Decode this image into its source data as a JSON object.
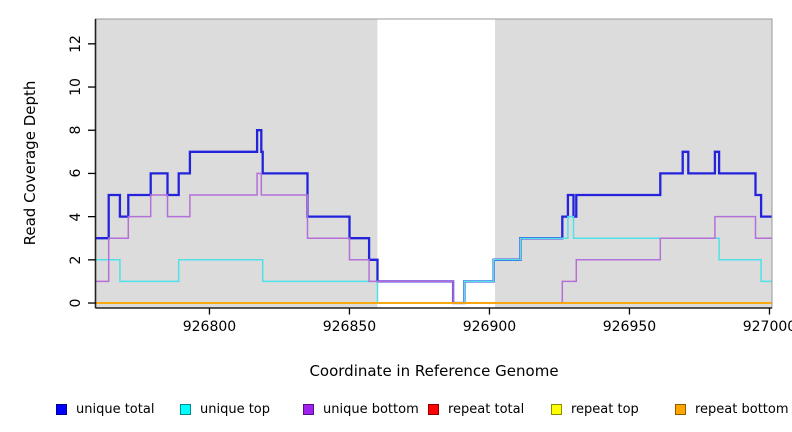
{
  "chart_data": {
    "type": "line",
    "step": true,
    "title": "",
    "xlabel": "Coordinate in Reference Genome",
    "ylabel": "Read Coverage Depth",
    "xlim": [
      926759.3,
      927000.9
    ],
    "ylim": [
      -0.23,
      13.15
    ],
    "grid": false,
    "legend_position": "bottom",
    "x_ticks": [
      {
        "value": 926800,
        "label": "926800"
      },
      {
        "value": 926850,
        "label": "926850"
      },
      {
        "value": 926900,
        "label": "926900"
      },
      {
        "value": 926950,
        "label": "926950"
      },
      {
        "value": 927000,
        "label": "927000"
      }
    ],
    "y_ticks": [
      {
        "value": 0,
        "label": "0"
      },
      {
        "value": 2,
        "label": "2"
      },
      {
        "value": 4,
        "label": "4"
      },
      {
        "value": 6,
        "label": "6"
      },
      {
        "value": 8,
        "label": "8"
      },
      {
        "value": 10,
        "label": "10"
      },
      {
        "value": 12,
        "label": "12"
      }
    ],
    "background": {
      "covered_region_color": "#DCDCDC",
      "gap_region": {
        "from": 926860,
        "to": 926902,
        "color": "#FFFFFF"
      },
      "frame_color": "#999999",
      "axis_color": "#222222"
    },
    "series": [
      {
        "name": "unique total",
        "legend_color": "#0000FF",
        "line_color": "#2323DC",
        "line_width": 2.3,
        "points": [
          [
            926759,
            3
          ],
          [
            926764,
            5
          ],
          [
            926768,
            4
          ],
          [
            926771,
            5
          ],
          [
            926779,
            6
          ],
          [
            926785,
            5
          ],
          [
            926789,
            6
          ],
          [
            926793,
            7
          ],
          [
            926817,
            8
          ],
          [
            926818.5,
            7
          ],
          [
            926819,
            6
          ],
          [
            926835,
            4
          ],
          [
            926850,
            3
          ],
          [
            926857,
            2
          ],
          [
            926860,
            1
          ],
          [
            926887,
            0
          ],
          [
            926891,
            1
          ],
          [
            926901.5,
            2
          ],
          [
            926911,
            3
          ],
          [
            926926,
            4
          ],
          [
            926928,
            5
          ],
          [
            926930,
            4
          ],
          [
            926931,
            5
          ],
          [
            926961,
            6
          ],
          [
            926969,
            7
          ],
          [
            926971,
            6
          ],
          [
            926980.5,
            7
          ],
          [
            926982,
            6
          ],
          [
            926995,
            5
          ],
          [
            926997,
            4
          ],
          [
            927001,
            4
          ]
        ]
      },
      {
        "name": "unique top",
        "legend_color": "#00FFFF",
        "line_color": "#4FE1EA",
        "line_width": 1.5,
        "points": [
          [
            926759,
            2
          ],
          [
            926768,
            1
          ],
          [
            926789,
            2
          ],
          [
            926819,
            1
          ],
          [
            926860,
            0
          ],
          [
            926891,
            1
          ],
          [
            926901.5,
            2
          ],
          [
            926911,
            3
          ],
          [
            926928,
            4
          ],
          [
            926930,
            3
          ],
          [
            926982,
            2
          ],
          [
            926997,
            1
          ],
          [
            927001,
            1
          ]
        ]
      },
      {
        "name": "unique bottom",
        "legend_color": "#A020F0",
        "line_color": "#B56FD8",
        "line_width": 1.5,
        "points": [
          [
            926759,
            1
          ],
          [
            926764,
            3
          ],
          [
            926771,
            4
          ],
          [
            926779,
            5
          ],
          [
            926785,
            4
          ],
          [
            926793,
            5
          ],
          [
            926817,
            6
          ],
          [
            926818.5,
            5
          ],
          [
            926835,
            3
          ],
          [
            926850,
            2
          ],
          [
            926857,
            1
          ],
          [
            926887,
            0
          ],
          [
            926926,
            1
          ],
          [
            926931,
            2
          ],
          [
            926961,
            3
          ],
          [
            926980.5,
            4
          ],
          [
            926995,
            3
          ],
          [
            927001,
            3
          ]
        ]
      },
      {
        "name": "repeat total",
        "legend_color": "#FF0000",
        "line_color": "#E00000",
        "line_width": 1.2,
        "points": [
          [
            926759,
            0
          ],
          [
            927001,
            0
          ]
        ]
      },
      {
        "name": "repeat top",
        "legend_color": "#FFFF00",
        "line_color": "#FFFF00",
        "line_width": 1.2,
        "points": [
          [
            926759,
            0
          ],
          [
            927001,
            0
          ]
        ]
      },
      {
        "name": "repeat bottom",
        "legend_color": "#FFA500",
        "line_color": "#FFA500",
        "line_width": 1.8,
        "points": [
          [
            926759,
            0
          ],
          [
            927001,
            0
          ]
        ]
      }
    ]
  },
  "layout_text": {
    "x_axis_title": "Coordinate in Reference Genome",
    "y_axis_title": "Read Coverage Depth"
  }
}
